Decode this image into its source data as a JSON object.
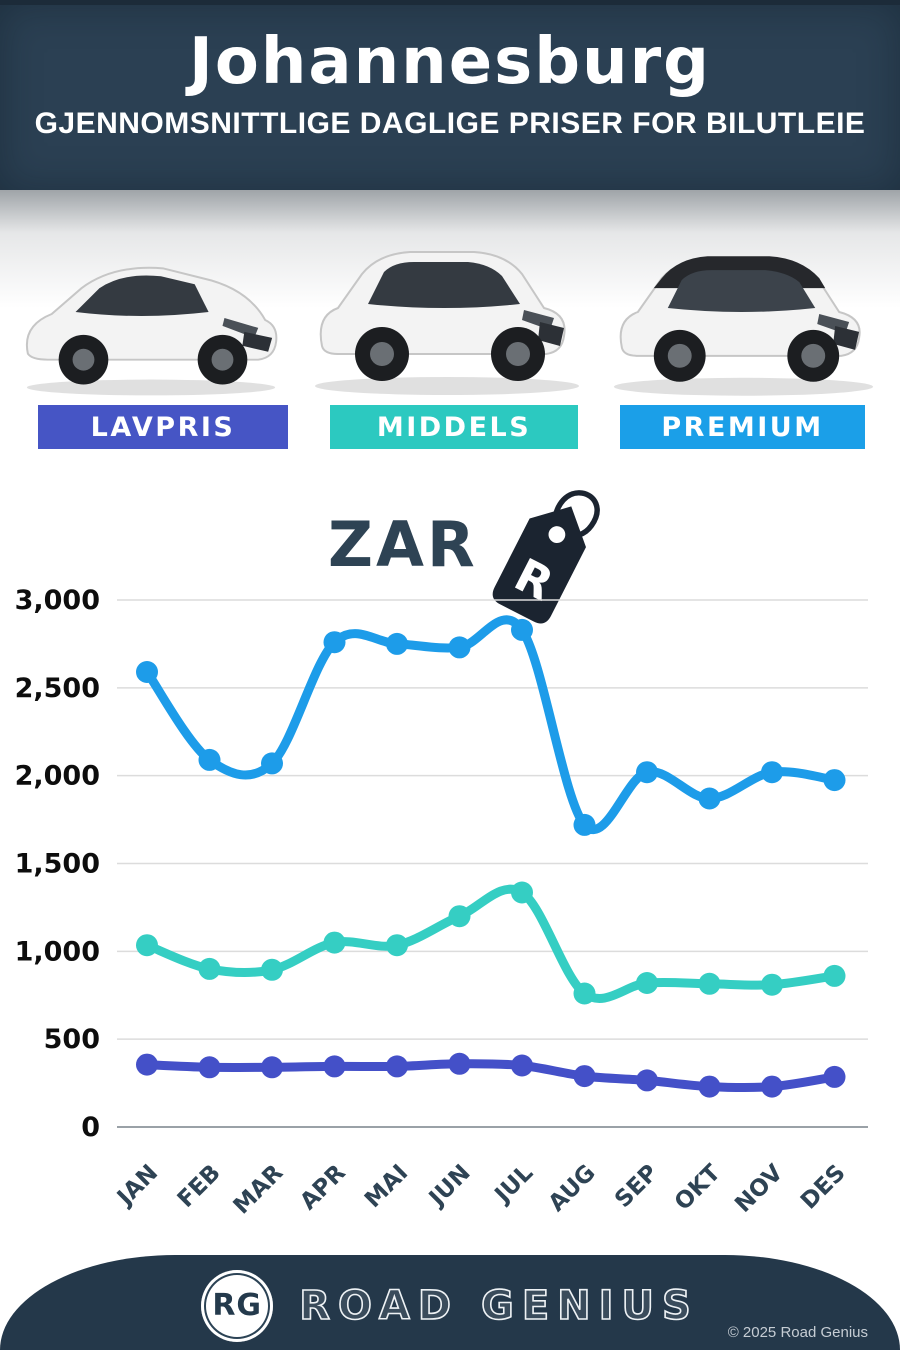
{
  "header": {
    "title": "Johannesburg",
    "subtitle": "GJENNOMSNITTLIGE DAGLIGE PRISER FOR BILUTLEIE"
  },
  "categories": [
    {
      "label": "LAVPRIS",
      "color": "#4655c5"
    },
    {
      "label": "MIDDELS",
      "color": "#2cc9c0"
    },
    {
      "label": "PREMIUM",
      "color": "#1b9fe8"
    }
  ],
  "currency": {
    "code": "ZAR",
    "symbol": "R"
  },
  "icons": {
    "price_tag_icon": "price-tag",
    "logo_icon": "road-genius-monogram"
  },
  "chart_data": {
    "type": "line",
    "categories": [
      "JAN",
      "FEB",
      "MAR",
      "APR",
      "MAI",
      "JUN",
      "JUL",
      "AUG",
      "SEP",
      "OKT",
      "NOV",
      "DES"
    ],
    "series": [
      {
        "name": "PREMIUM",
        "color": "#1d9ce9",
        "values": [
          2590,
          2090,
          2070,
          2760,
          2750,
          2730,
          2830,
          1720,
          2020,
          1870,
          2020,
          1975
        ]
      },
      {
        "name": "MIDDELS",
        "color": "#35cec3",
        "values": [
          1035,
          900,
          895,
          1050,
          1035,
          1200,
          1335,
          760,
          820,
          815,
          810,
          860
        ]
      },
      {
        "name": "LAVPRIS",
        "color": "#4450c8",
        "values": [
          355,
          340,
          340,
          345,
          345,
          360,
          350,
          290,
          265,
          230,
          230,
          285
        ]
      }
    ],
    "title": "",
    "xlabel": "",
    "ylabel": "",
    "ylim": [
      0,
      3000
    ],
    "ytick_step": 500,
    "ytick_labels": [
      "0",
      "500",
      "1,000",
      "1,500",
      "2,000",
      "2,500",
      "3,000"
    ],
    "grid": true,
    "legend_position": "none"
  },
  "theme": {
    "header_bg": "#2b4053",
    "footer_bg": "#24384a",
    "text_dark": "#2e4354"
  },
  "footer": {
    "logo_initials": "RG",
    "brand": "ROAD GENIUS",
    "copyright": "© 2025 Road Genius"
  }
}
